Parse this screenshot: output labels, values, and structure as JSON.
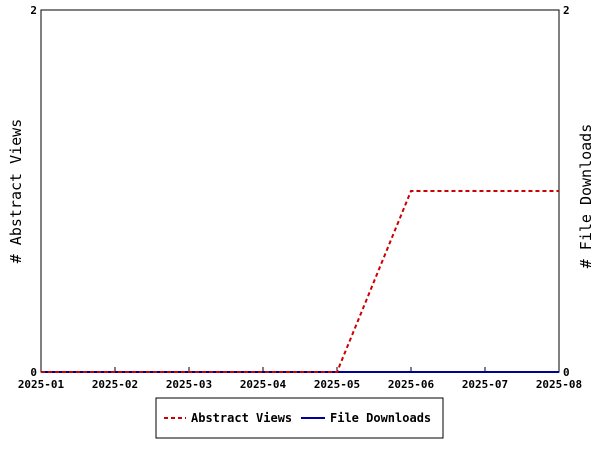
{
  "chart_data": {
    "type": "line",
    "x": [
      "2025-01",
      "2025-02",
      "2025-03",
      "2025-04",
      "2025-05",
      "2025-06",
      "2025-07",
      "2025-08"
    ],
    "series": [
      {
        "name": "Abstract Views",
        "axis": "left",
        "values": [
          0,
          0,
          0,
          0,
          0,
          1,
          1,
          1
        ],
        "color": "#cc0000",
        "style": "dashed"
      },
      {
        "name": "File Downloads",
        "axis": "right",
        "values": [
          0,
          0,
          0,
          0,
          0,
          0,
          0,
          0
        ],
        "color": "#000099",
        "style": "solid"
      }
    ],
    "ylabel_left": "# Abstract Views",
    "ylabel_right": "# File Downloads",
    "ylim_left": [
      0,
      2
    ],
    "ylim_right": [
      0,
      2
    ],
    "yticks_left": [
      "0",
      "2"
    ],
    "yticks_right": [
      "0",
      "2"
    ],
    "grid": false,
    "legend_position": "bottom-center"
  }
}
